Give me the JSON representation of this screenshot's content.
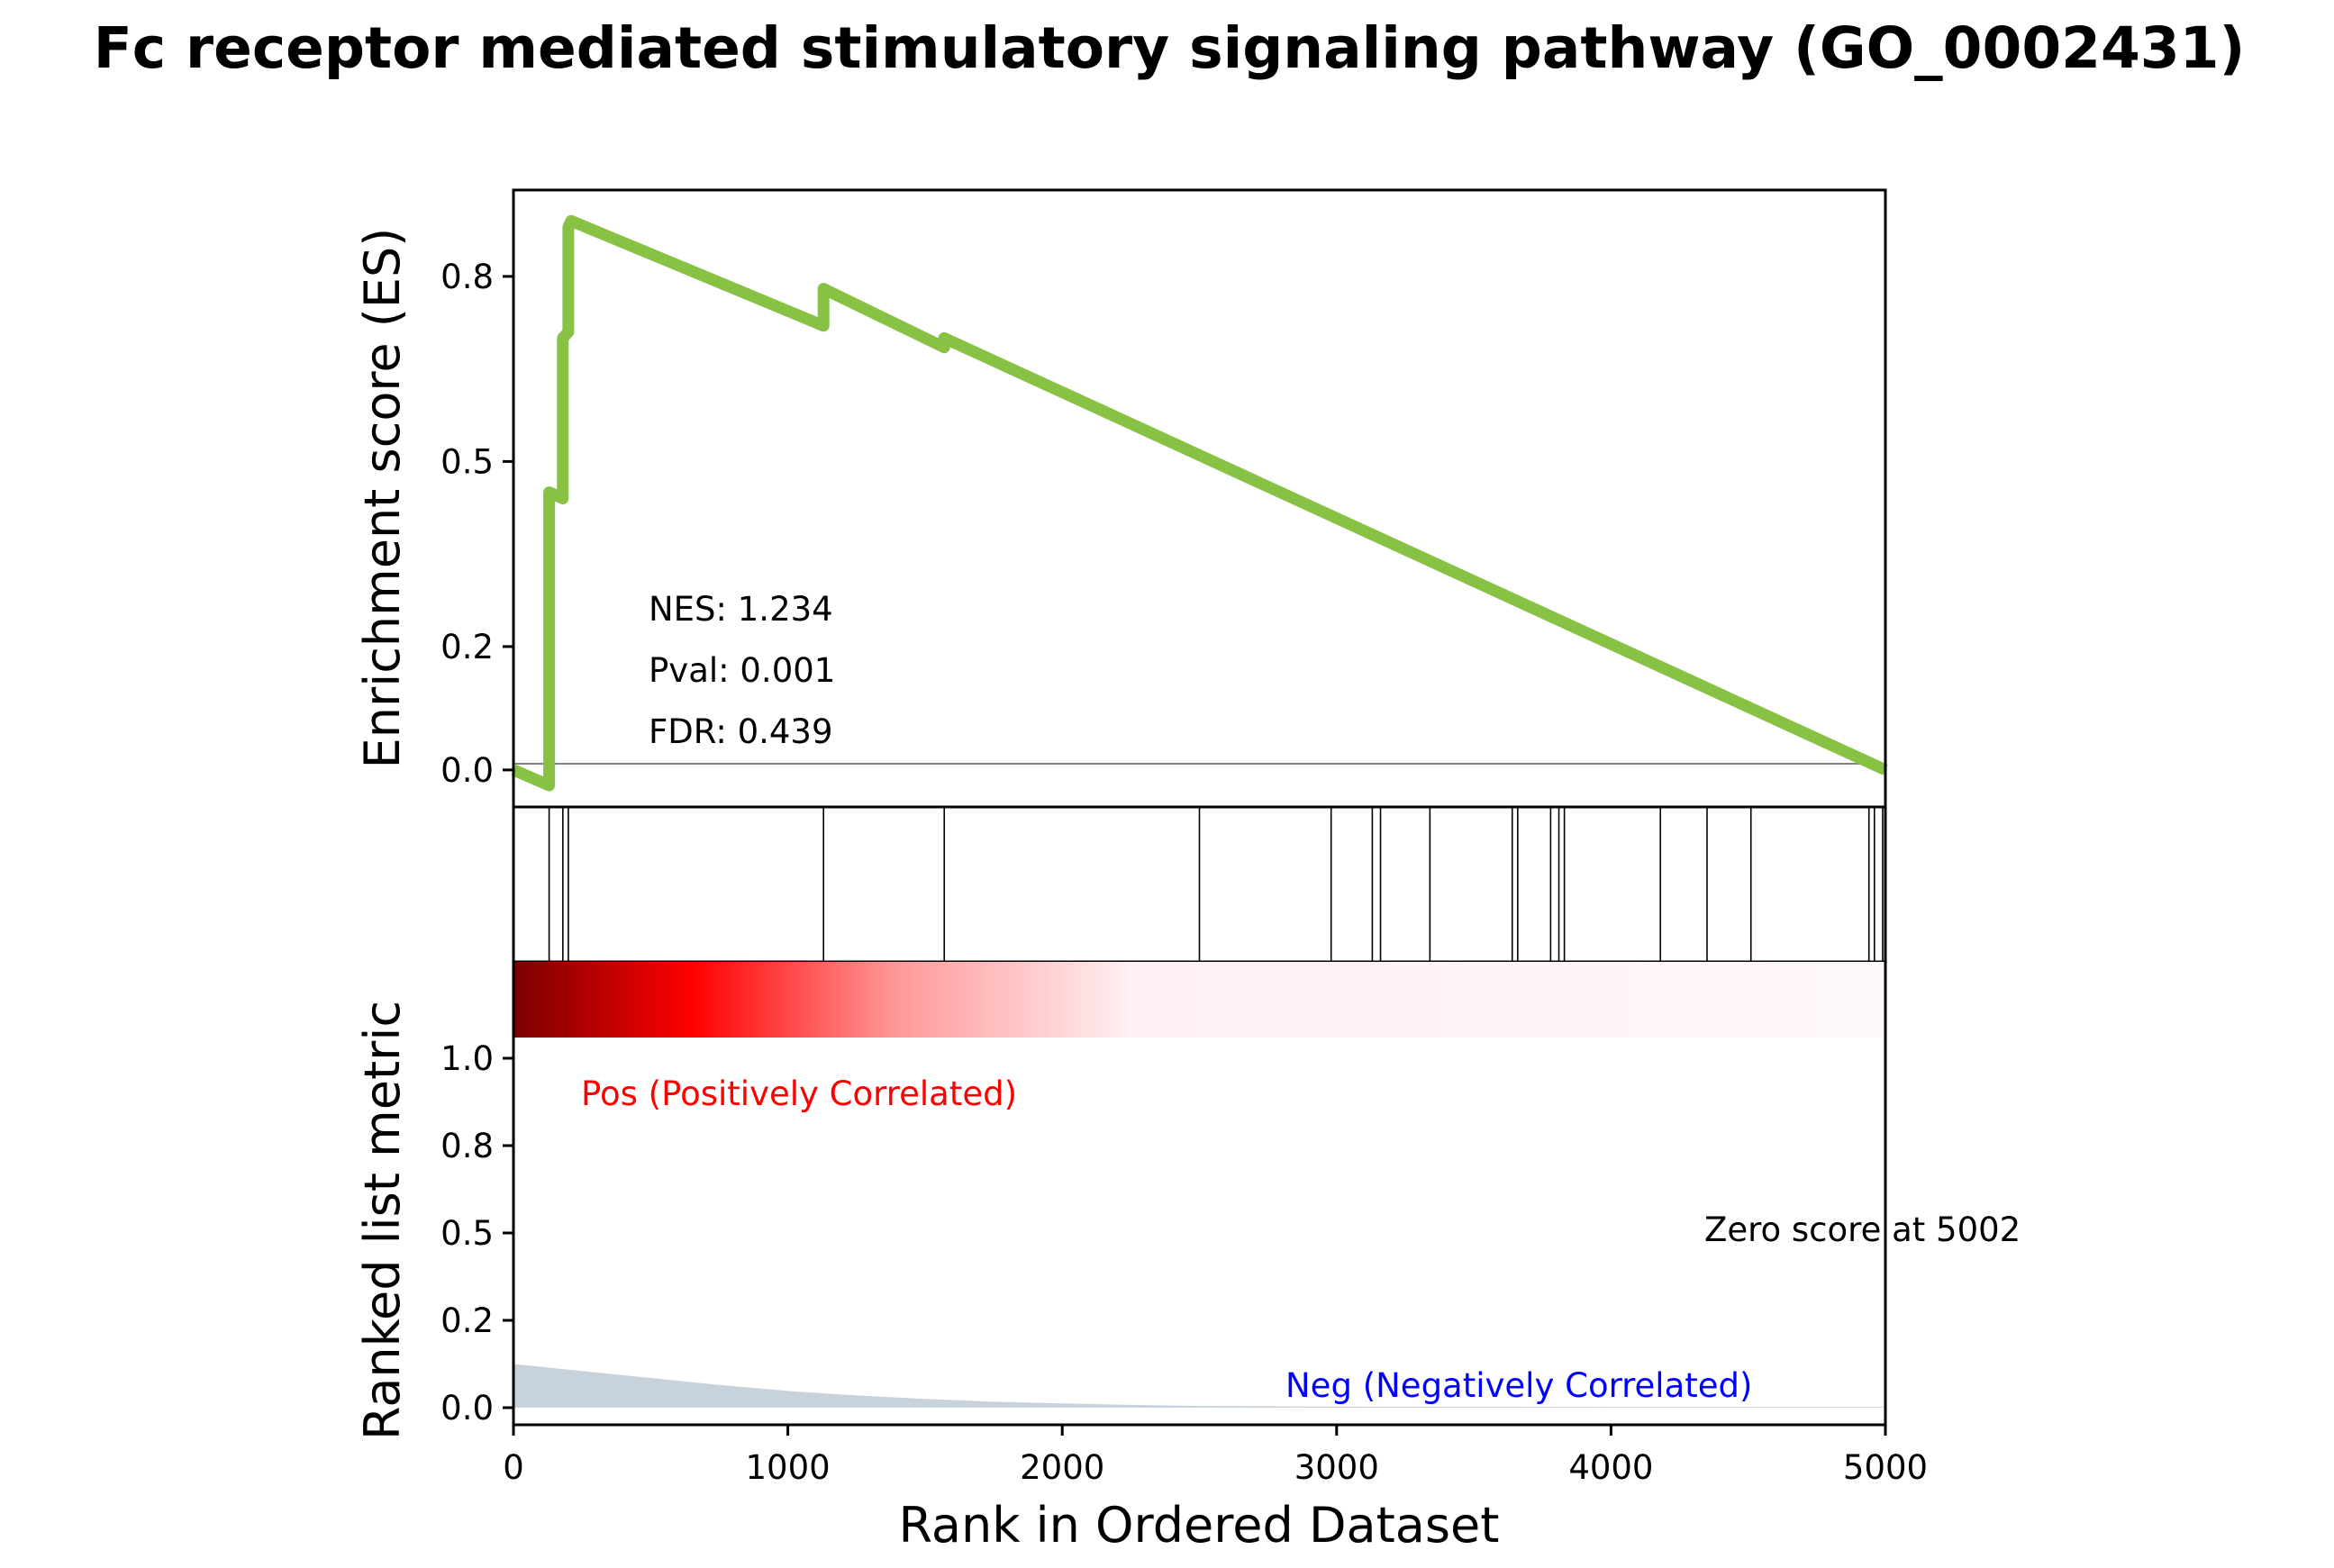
{
  "chart_data": {
    "type": "line",
    "title": "Fc receptor mediated stimulatory signaling pathway (GO_0002431)",
    "xlabel": "Rank in Ordered Dataset",
    "xlim": [
      0,
      5000
    ],
    "x_ticks": [
      0,
      1000,
      2000,
      3000,
      4000,
      5000
    ],
    "es_panel": {
      "ylabel": "Enrichment score (ES)",
      "ylim": [
        -0.06,
        0.94
      ],
      "y_ticks": [
        0.0,
        0.2,
        0.5,
        0.8
      ],
      "y_tick_labels": [
        "0.0",
        "0.2",
        "0.5",
        "0.8"
      ],
      "color": "#88c244",
      "series": [
        {
          "x": [
            0,
            130,
            130,
            180,
            180,
            200,
            200,
            210,
            210,
            1130,
            1130,
            1570,
            1570,
            5000
          ],
          "y": [
            0.0,
            -0.025,
            0.45,
            0.44,
            0.7,
            0.71,
            0.88,
            0.89,
            0.89,
            0.72,
            0.78,
            0.685,
            0.7,
            0.0
          ]
        }
      ],
      "annotations": {
        "nes": "NES: 1.234",
        "pval": "Pval: 0.001",
        "fdr": "FDR: 0.439"
      }
    },
    "hits": [
      130,
      180,
      200,
      1130,
      1570,
      2500,
      2980,
      3130,
      3160,
      3340,
      3640,
      3660,
      3780,
      3810,
      3830,
      4180,
      4350,
      4510,
      4940,
      4960,
      4990
    ],
    "gradient_colors": [
      "#7a0000",
      "#ff0000",
      "#ff9999",
      "#fff0f3",
      "#fff8fa"
    ],
    "rank_panel": {
      "ylabel": "Ranked list metric",
      "y_ticks": [
        0.0,
        0.2,
        0.5,
        0.8,
        1.0
      ],
      "y_tick_labels": [
        "0.0",
        "0.2",
        "0.5",
        "0.8",
        "1.0"
      ],
      "fill_color": "#c8d2da",
      "metric": {
        "x": [
          0,
          250,
          500,
          750,
          1000,
          1250,
          1500,
          1750,
          2000,
          2250,
          2500,
          3000,
          4000,
          5000
        ],
        "y": [
          0.125,
          0.105,
          0.085,
          0.065,
          0.048,
          0.035,
          0.025,
          0.017,
          0.012,
          0.008,
          0.005,
          0.003,
          0.002,
          0.002
        ]
      },
      "pos_label": "Pos (Positively Correlated)",
      "pos_color": "#ff0000",
      "neg_label": "Neg (Negatively Correlated)",
      "neg_color": "#0000ff",
      "zero_label": "Zero score at 5002"
    }
  }
}
